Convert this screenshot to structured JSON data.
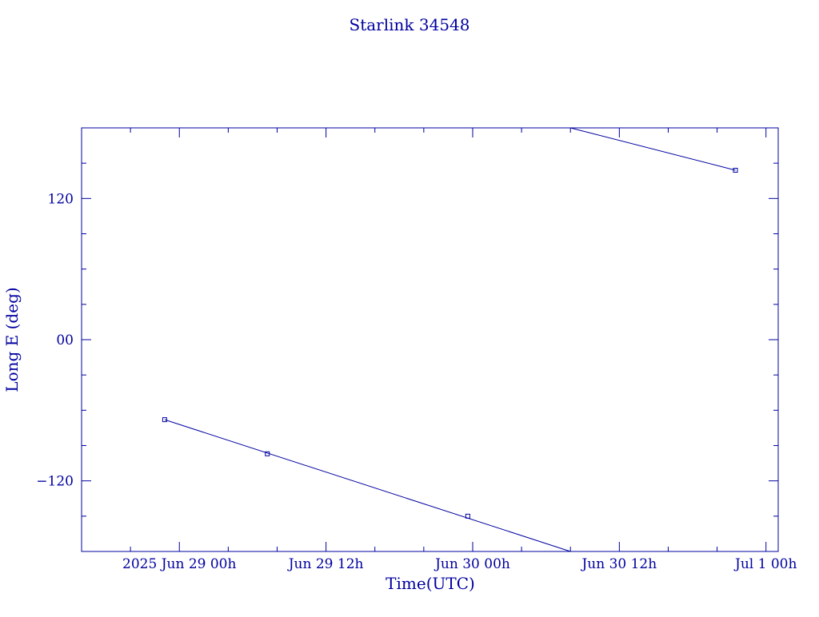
{
  "chart_data": {
    "type": "line",
    "title": "Starlink 34548",
    "xlabel": "Time(UTC)",
    "ylabel": "Long E (deg)",
    "x_axis_kind": "datetime_hours_utc",
    "xlim": [
      "2025-06-28T16:00:00Z",
      "2025-07-01T01:00:00Z"
    ],
    "ylim": [
      -180,
      180
    ],
    "x_major_ticks": [
      {
        "x": "2025-06-29T00:00:00Z",
        "label": "2025 Jun 29  00h"
      },
      {
        "x": "2025-06-29T12:00:00Z",
        "label": "Jun 29  12h"
      },
      {
        "x": "2025-06-30T00:00:00Z",
        "label": "Jun 30  00h"
      },
      {
        "x": "2025-06-30T12:00:00Z",
        "label": "Jun 30  12h"
      },
      {
        "x": "2025-07-01T00:00:00Z",
        "label": "Jul  1  00h"
      }
    ],
    "y_major_ticks": [
      {
        "y": 120,
        "label": "120"
      },
      {
        "y": 0,
        "label": "00"
      },
      {
        "y": -120,
        "label": "−120"
      }
    ],
    "y_minor_ticks": [
      150,
      90,
      60,
      30,
      -30,
      -60,
      -90,
      -150
    ],
    "grid": false,
    "legend": "none",
    "series": [
      {
        "segments": [
          {
            "line_from": {
              "x": "2025-06-28T22:48:00Z",
              "y": -68
            },
            "line_to": {
              "x": "2025-06-30T08:00:00Z",
              "y": -180
            }
          },
          {
            "line_from": {
              "x": "2025-06-30T08:00:00Z",
              "y": 180
            },
            "line_to": {
              "x": "2025-06-30T21:30:00Z",
              "y": 144
            }
          }
        ],
        "points": [
          {
            "x": "2025-06-28T22:48:00Z",
            "y": -68
          },
          {
            "x": "2025-06-29T07:12:00Z",
            "y": -97
          },
          {
            "x": "2025-06-29T23:36:00Z",
            "y": -150
          },
          {
            "x": "2025-06-30T21:30:00Z",
            "y": 144
          }
        ]
      }
    ],
    "colors": {
      "ink": "#0000a0",
      "background": "#ffffff"
    }
  }
}
